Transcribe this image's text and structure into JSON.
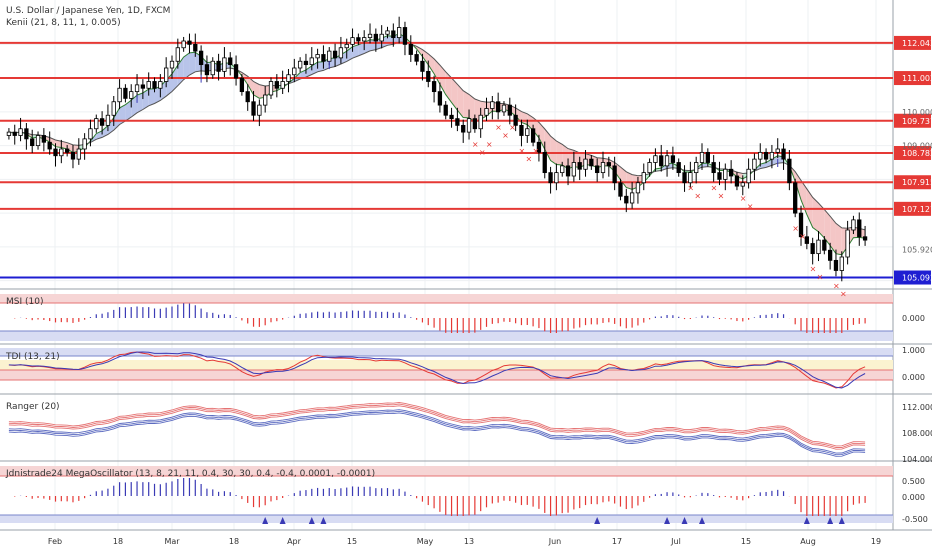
{
  "header": {
    "title": "U.S. Dollar / Japanese Yen, 1D, FXCM",
    "indicator": "Kenii (21, 8, 11, 1, 0.005)"
  },
  "panes": {
    "msi": {
      "title": "MSI (10)",
      "labels": [
        "0.000"
      ]
    },
    "tdi": {
      "title": "TDI (13, 21)",
      "labels": [
        "1.000",
        "0.000"
      ]
    },
    "ranger": {
      "title": "Ranger (20)",
      "labels": [
        "112.000",
        "108.000",
        "104.000"
      ]
    },
    "mega": {
      "title": "Jdnistrade24 MegaOscillator (13, 8, 21, 11, 0.4, 30, 30, 0.4, -0.4, 0.0001, -0.0001)",
      "labels": [
        "0.500",
        "0.000",
        "-0.500"
      ]
    }
  },
  "x_axis": [
    "Feb",
    "18",
    "Mar",
    "18",
    "Apr",
    "15",
    "May",
    "13",
    "Jun",
    "17",
    "Jul",
    "15",
    "Aug",
    "19"
  ],
  "price_levels": [
    {
      "value": 112.043,
      "label": "112.043",
      "color": "#e53935"
    },
    {
      "value": 111.002,
      "label": "111.002",
      "color": "#e53935"
    },
    {
      "value": 109.737,
      "label": "109.737",
      "color": "#e53935"
    },
    {
      "value": 108.782,
      "label": "108.782",
      "color": "#e53935"
    },
    {
      "value": 107.915,
      "label": "107.915",
      "color": "#e53935"
    },
    {
      "value": 107.127,
      "label": "107.127",
      "color": "#e53935"
    },
    {
      "value": 105.092,
      "label": "105.092",
      "color": "#1e1ed2"
    }
  ],
  "price_axis_labels": [
    {
      "value": 110.0,
      "label": "110.000"
    },
    {
      "value": 109.0,
      "label": "109.000"
    },
    {
      "value": 105.92,
      "label": "105.920"
    }
  ],
  "chart_data": {
    "type": "candlestick",
    "symbol": "U.S. Dollar / Japanese Yen, 1D, FXCM",
    "closes": [
      109.4,
      109.3,
      109.5,
      109.2,
      109.0,
      109.3,
      109.1,
      108.9,
      108.7,
      108.9,
      108.8,
      108.6,
      108.9,
      109.2,
      109.5,
      109.8,
      109.6,
      109.9,
      110.3,
      110.7,
      110.4,
      110.6,
      110.8,
      110.7,
      110.9,
      110.7,
      110.9,
      111.3,
      111.5,
      111.9,
      112.1,
      112.0,
      111.8,
      111.4,
      111.1,
      111.5,
      111.2,
      111.6,
      111.4,
      111.0,
      110.6,
      110.3,
      109.9,
      110.2,
      110.5,
      110.9,
      110.7,
      110.9,
      111.1,
      111.3,
      111.5,
      111.4,
      111.6,
      111.7,
      111.5,
      111.8,
      111.6,
      111.9,
      112.0,
      112.2,
      112.1,
      112.2,
      112.3,
      112.1,
      112.3,
      112.4,
      112.2,
      112.5,
      112.0,
      111.7,
      111.5,
      111.2,
      110.9,
      110.6,
      110.2,
      109.9,
      109.8,
      109.6,
      109.4,
      109.8,
      109.5,
      109.9,
      110.1,
      110.3,
      110.0,
      110.2,
      109.9,
      109.6,
      109.3,
      109.5,
      109.1,
      108.8,
      108.2,
      107.9,
      108.2,
      108.4,
      108.1,
      108.5,
      108.3,
      108.6,
      108.4,
      108.2,
      108.5,
      108.4,
      107.9,
      107.5,
      107.3,
      107.6,
      107.9,
      108.2,
      108.5,
      108.7,
      108.4,
      108.7,
      108.5,
      108.2,
      107.9,
      108.2,
      108.5,
      108.8,
      108.5,
      108.2,
      108.0,
      108.3,
      108.1,
      107.8,
      107.9,
      108.3,
      108.6,
      108.8,
      108.6,
      108.8,
      108.9,
      108.6,
      107.9,
      107.0,
      106.3,
      106.1,
      105.8,
      106.2,
      105.9,
      105.6,
      105.3,
      105.7,
      106.5,
      106.8,
      106.3,
      106.2
    ],
    "ylim": [
      104.9,
      112.9
    ],
    "price_levels": [
      112.043,
      111.002,
      109.737,
      108.782,
      107.915,
      107.127,
      105.092
    ],
    "grid": true
  },
  "colors": {
    "up": "#ffffff",
    "down": "#000000",
    "resistance": "#e53935",
    "support": "#1e1ed2",
    "cloud_bull": "#b8c4ea",
    "cloud_bear": "#f4c6c6",
    "cloud_neutral": "#c6ecd8",
    "signal_buy": "#3a3ab5",
    "signal_sell": "#e53935"
  }
}
